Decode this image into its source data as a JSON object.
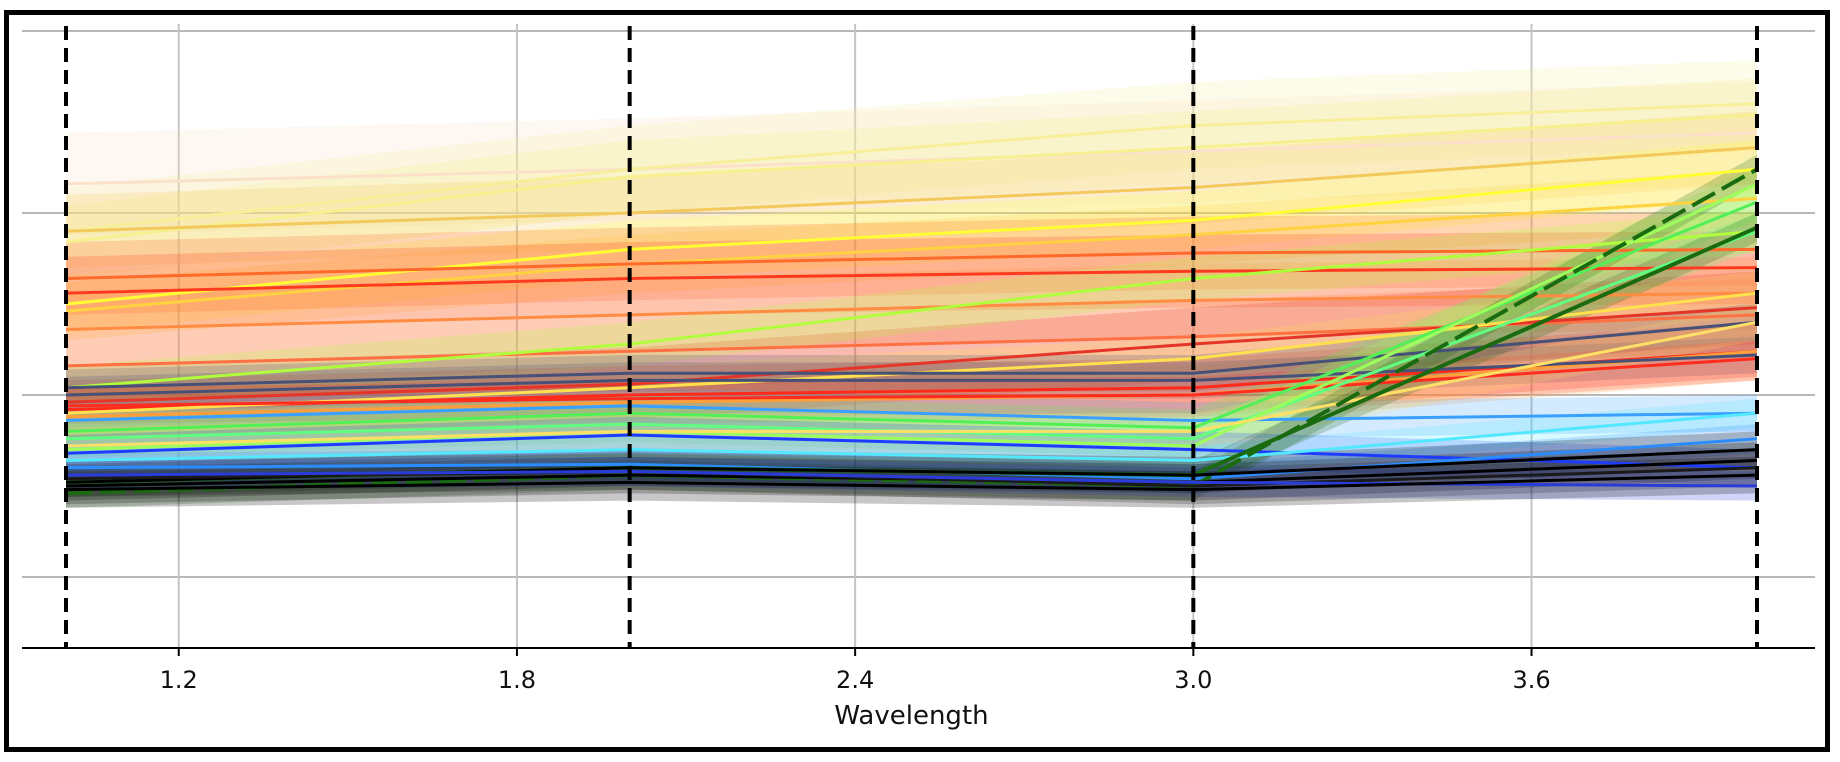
{
  "chart_data": {
    "type": "line",
    "title": "",
    "xlabel": "Wavelength",
    "ylabel": "",
    "xlim": [
      1.0,
      4.0
    ],
    "ylim": [
      -0.2,
      1.5
    ],
    "x_ticks": [
      1.2,
      1.8,
      2.4,
      3.0,
      3.6
    ],
    "x_tick_labels": [
      "1.2",
      "1.8",
      "2.4",
      "3.0",
      "3.6"
    ],
    "y_gridlines": [
      0.0,
      0.5,
      1.0,
      1.5
    ],
    "y_tick_labels_shown": false,
    "grid": true,
    "legend": "none",
    "vertical_markers": [
      1.0,
      2.0,
      3.0,
      4.0
    ],
    "vertical_marker_style": "black dashed",
    "x": [
      1.0,
      2.0,
      3.0,
      4.0
    ],
    "series": [
      {
        "color": "#fbe1c9",
        "values": [
          1.08,
          1.12,
          1.17,
          1.22
        ],
        "band": 0.14
      },
      {
        "color": "#f7ef9a",
        "values": [
          0.95,
          1.12,
          1.24,
          1.3
        ],
        "band": 0.12
      },
      {
        "color": "#f6f08f",
        "values": [
          0.92,
          1.1,
          1.18,
          1.27
        ],
        "band": 0.1
      },
      {
        "color": "#f4c95c",
        "values": [
          0.95,
          1.0,
          1.07,
          1.18
        ],
        "band": 0.1
      },
      {
        "color": "#ffff33",
        "values": [
          0.75,
          0.9,
          0.98,
          1.12
        ],
        "band": 0.08
      },
      {
        "color": "#ffd23f",
        "values": [
          0.73,
          0.86,
          0.94,
          1.04
        ],
        "band": 0.08
      },
      {
        "color": "#ff6a2a",
        "values": [
          0.82,
          0.86,
          0.89,
          0.9
        ],
        "band": 0.1
      },
      {
        "color": "#ff3b1f",
        "values": [
          0.78,
          0.82,
          0.84,
          0.85
        ],
        "band": 0.1
      },
      {
        "color": "#ff8c42",
        "values": [
          0.68,
          0.72,
          0.76,
          0.78
        ],
        "band": 0.1
      },
      {
        "color": "#ff7043",
        "values": [
          0.58,
          0.62,
          0.66,
          0.72
        ],
        "band": 0.1
      },
      {
        "color": "#e53528",
        "values": [
          0.48,
          0.53,
          0.64,
          0.74
        ],
        "band": 0.1
      },
      {
        "color": "#ff2a1a",
        "values": [
          0.46,
          0.5,
          0.52,
          0.62
        ],
        "band": 0.08
      },
      {
        "color": "#b0ff3c",
        "values": [
          0.52,
          0.64,
          0.82,
          0.95
        ],
        "band": 0.06
      },
      {
        "color": "#ffe14d",
        "values": [
          0.45,
          0.52,
          0.6,
          0.78
        ],
        "band": 0.06
      },
      {
        "color": "#ff9f3a",
        "values": [
          0.44,
          0.48,
          0.5,
          0.62
        ],
        "band": 0.08
      },
      {
        "color": "#475077",
        "values": [
          0.52,
          0.56,
          0.56,
          0.7
        ],
        "band": 0.05
      },
      {
        "color": "#475077",
        "values": [
          0.5,
          0.54,
          0.54,
          0.61
        ],
        "band": 0.05
      },
      {
        "color": "#ff2d1e",
        "values": [
          0.47,
          0.49,
          0.5,
          0.6
        ],
        "band": 0.05
      },
      {
        "color": "#3aa0ff",
        "values": [
          0.43,
          0.47,
          0.43,
          0.45
        ],
        "band": 0.05
      },
      {
        "color": "#52f057",
        "values": [
          0.4,
          0.45,
          0.41,
          1.03
        ],
        "band": 0.05
      },
      {
        "color": "#60ff80",
        "values": [
          0.38,
          0.42,
          0.38,
          0.95
        ],
        "band": 0.05
      },
      {
        "color": "#9dff5a",
        "values": [
          0.35,
          0.4,
          0.36,
          1.08
        ],
        "band": 0.05
      },
      {
        "color": "#ffe066",
        "values": [
          0.36,
          0.4,
          0.4,
          0.7
        ],
        "band": 0.05
      },
      {
        "color": "#1e3cff",
        "values": [
          0.34,
          0.39,
          0.35,
          0.3
        ],
        "band": 0.05
      },
      {
        "color": "#54e8ff",
        "values": [
          0.32,
          0.35,
          0.32,
          0.45
        ],
        "band": 0.04
      },
      {
        "color": "#2a8cff",
        "values": [
          0.3,
          0.31,
          0.27,
          0.38
        ],
        "band": 0.04
      },
      {
        "color": "#1a6a10",
        "values": [
          0.23,
          0.28,
          0.25,
          1.12
        ],
        "band": 0.04
      },
      {
        "color": "#1a6a10",
        "values": [
          0.26,
          0.3,
          0.28,
          0.96
        ],
        "band": 0.04
      },
      {
        "color": "#000000",
        "values": [
          0.26,
          0.3,
          0.28,
          0.35
        ],
        "band": 0.05
      },
      {
        "color": "#000000",
        "values": [
          0.25,
          0.28,
          0.26,
          0.32
        ],
        "band": 0.05
      },
      {
        "color": "#1a1a1a",
        "values": [
          0.27,
          0.29,
          0.25,
          0.3
        ],
        "band": 0.05
      },
      {
        "color": "#2b3bd8",
        "values": [
          0.28,
          0.29,
          0.26,
          0.25
        ],
        "band": 0.04
      },
      {
        "color": "#000000",
        "values": [
          0.24,
          0.26,
          0.24,
          0.28
        ],
        "band": 0.05
      }
    ]
  }
}
